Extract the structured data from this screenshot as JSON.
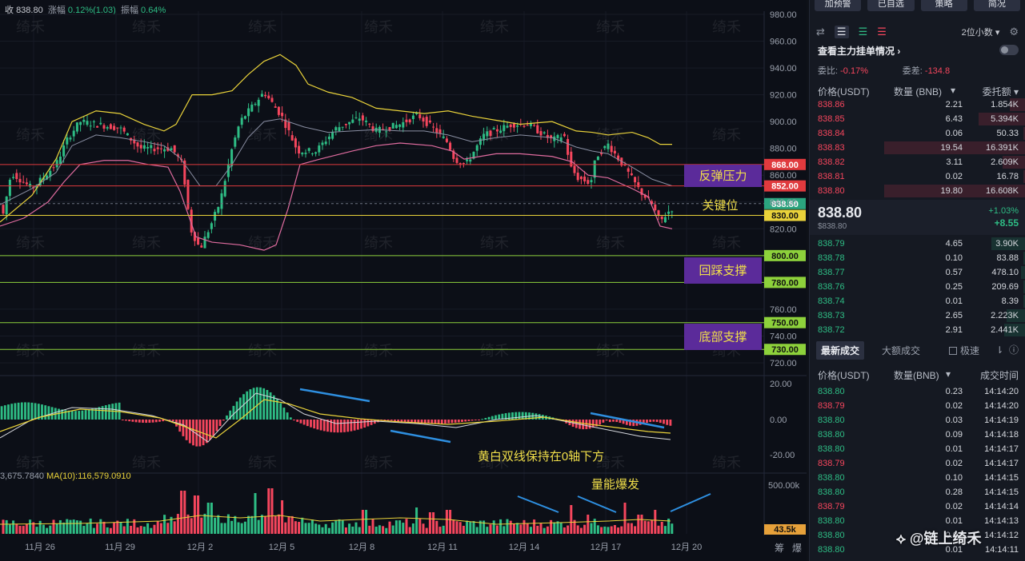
{
  "header": {
    "close_label": "收",
    "close_value": "838.80",
    "chg_label": "涨幅",
    "chg_value": "0.12%(1.03)",
    "amp_label": "振幅",
    "amp_value": "0.64%"
  },
  "watermark_chart": "绮禾",
  "price_axis": [
    "980.00",
    "960.00",
    "940.00",
    "920.00",
    "900.00",
    "880.00",
    "860.00",
    "840.00",
    "820.00",
    "760.00",
    "740.00",
    "720.00"
  ],
  "level_tags": [
    {
      "value": "868.00",
      "color": "#e03a3e"
    },
    {
      "value": "852.00",
      "color": "#e03a3e"
    },
    {
      "value": "838.80",
      "color": "#2ba57f"
    },
    {
      "value": "830.00",
      "color": "#e9d23a"
    },
    {
      "value": "800.00",
      "color": "#8dd13b"
    },
    {
      "value": "780.00",
      "color": "#8dd13b"
    },
    {
      "value": "750.00",
      "color": "#8dd13b"
    },
    {
      "value": "730.00",
      "color": "#8dd13b"
    }
  ],
  "annotations": {
    "rebound_pressure": "反弹压力",
    "key_level": "关键位",
    "pullback_support": "回踩支撑",
    "bottom_support": "底部支撑",
    "macd_note": "黄白双线保持在0轴下方",
    "volume_note": "量能爆发"
  },
  "macd_axis": [
    "20.00",
    "0.00",
    "-20.00"
  ],
  "volume": {
    "left_label": "3,675.7840",
    "ma_label": "MA(10):116,579.0910",
    "axis_top": "500.00k",
    "tag": "43.5k"
  },
  "date_labels": [
    "11月 26",
    "11月 29",
    "12月 2",
    "12月 5",
    "12月 8",
    "12月 11",
    "12月 14",
    "12月 17",
    "12月 20"
  ],
  "corner_labels": [
    "筹",
    "爆"
  ],
  "sidebar": {
    "buttons": [
      "加预警",
      "已自选",
      "策略",
      "简况"
    ],
    "decimal_select": "2位小数",
    "orderbook_title": "查看主力挂单情况",
    "ratio_label": "委比:",
    "ratio_value": "-0.17%",
    "diff_label": "委差:",
    "diff_value": "-134.8",
    "col_price": "价格(USDT)",
    "col_qty": "数量 (BNB)",
    "col_total": "委托额",
    "asks": [
      {
        "p": "838.86",
        "q": "2.21",
        "t": "1.854K",
        "w": 0.11
      },
      {
        "p": "838.85",
        "q": "6.43",
        "t": "5.394K",
        "w": 0.33
      },
      {
        "p": "838.84",
        "q": "0.06",
        "t": "50.33",
        "w": 0.01
      },
      {
        "p": "838.83",
        "q": "19.54",
        "t": "16.391K",
        "w": 1.0
      },
      {
        "p": "838.82",
        "q": "3.11",
        "t": "2.609K",
        "w": 0.16
      },
      {
        "p": "838.81",
        "q": "0.02",
        "t": "16.78",
        "w": 0.01
      },
      {
        "p": "838.80",
        "q": "19.80",
        "t": "16.608K",
        "w": 1.0
      }
    ],
    "last_price": "838.80",
    "last_price_usd": "$838.80",
    "last_pct": "+1.03%",
    "last_chg": "+8.55",
    "bids": [
      {
        "p": "838.79",
        "q": "4.65",
        "t": "3.90K",
        "w": 0.24
      },
      {
        "p": "838.78",
        "q": "0.10",
        "t": "83.88",
        "w": 0.01
      },
      {
        "p": "838.77",
        "q": "0.57",
        "t": "478.10",
        "w": 0.03
      },
      {
        "p": "838.76",
        "q": "0.25",
        "t": "209.69",
        "w": 0.01
      },
      {
        "p": "838.74",
        "q": "0.01",
        "t": "8.39",
        "w": 0.01
      },
      {
        "p": "838.73",
        "q": "2.65",
        "t": "2.223K",
        "w": 0.13
      },
      {
        "p": "838.72",
        "q": "2.91",
        "t": "2.441K",
        "w": 0.15
      }
    ],
    "tab_latest": "最新成交",
    "tab_large": "大额成交",
    "tab_fast": "极速",
    "col_trade_price": "价格(USDT)",
    "col_trade_qty": "数量(BNB)",
    "col_trade_time": "成交时间",
    "trades": [
      {
        "p": "838.80",
        "q": "0.23",
        "t": "14:14:20",
        "s": "buy"
      },
      {
        "p": "838.79",
        "q": "0.02",
        "t": "14:14:20",
        "s": "sell"
      },
      {
        "p": "838.80",
        "q": "0.03",
        "t": "14:14:19",
        "s": "buy"
      },
      {
        "p": "838.80",
        "q": "0.09",
        "t": "14:14:18",
        "s": "buy"
      },
      {
        "p": "838.80",
        "q": "0.01",
        "t": "14:14:17",
        "s": "buy"
      },
      {
        "p": "838.79",
        "q": "0.02",
        "t": "14:14:17",
        "s": "sell"
      },
      {
        "p": "838.80",
        "q": "0.10",
        "t": "14:14:15",
        "s": "buy"
      },
      {
        "p": "838.80",
        "q": "0.28",
        "t": "14:14:15",
        "s": "buy"
      },
      {
        "p": "838.79",
        "q": "0.02",
        "t": "14:14:14",
        "s": "sell"
      },
      {
        "p": "838.80",
        "q": "0.01",
        "t": "14:14:13",
        "s": "buy"
      },
      {
        "p": "838.80",
        "q": "0.01",
        "t": "14:14:12",
        "s": "buy"
      },
      {
        "p": "838.80",
        "q": "0.01",
        "t": "14:14:11",
        "s": "buy"
      }
    ]
  },
  "brand_watermark": "@链上绮禾",
  "colors": {
    "up": "#2ebd85",
    "down": "#f6465d",
    "boll_upper": "#e9d23a",
    "boll_mid": "#8a8fa3",
    "boll_lower": "#e06c9f"
  }
}
